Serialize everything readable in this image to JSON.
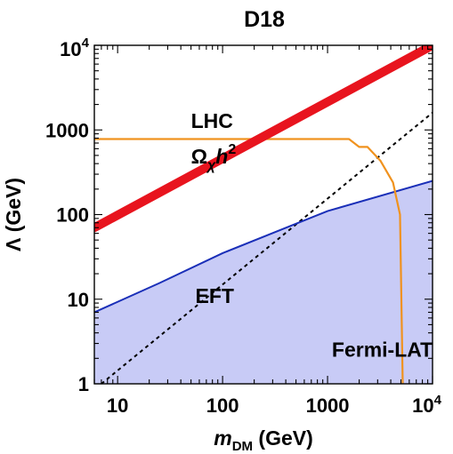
{
  "chart_data": {
    "type": "line",
    "title": "D18",
    "xlabel": {
      "main": "m",
      "sub": "DM",
      "unit": "(GeV)"
    },
    "ylabel": "Λ (GeV)",
    "x_scale": "log",
    "y_scale": "log",
    "xlim": [
      6,
      10000
    ],
    "ylim": [
      1,
      10000
    ],
    "x_ticks": [
      {
        "value": 10,
        "label": "10"
      },
      {
        "value": 100,
        "label": "100"
      },
      {
        "value": 1000,
        "label": "1000"
      },
      {
        "value": 10000,
        "label": "10",
        "sup": "4"
      }
    ],
    "y_ticks": [
      {
        "value": 1,
        "label": "1"
      },
      {
        "value": 10,
        "label": "10"
      },
      {
        "value": 100,
        "label": "100"
      },
      {
        "value": 1000,
        "label": "1000"
      },
      {
        "value": 10000,
        "label": "10",
        "sup": "4"
      }
    ],
    "grid": false,
    "series": [
      {
        "key": "relic",
        "color": "#e8141e",
        "style": "thick",
        "x": [
          6,
          10000
        ],
        "y": [
          70,
          10000
        ]
      },
      {
        "key": "lhc",
        "color": "#f0921e",
        "style": "solid",
        "x": [
          6,
          1600,
          2000,
          2400,
          3200,
          4200,
          4900,
          5200,
          5200
        ],
        "y": [
          780,
          780,
          630,
          630,
          430,
          240,
          100,
          1,
          1
        ]
      },
      {
        "key": "eft",
        "color": "#1a2fb8",
        "style": "solid",
        "fill": "#c8cbf6",
        "x": [
          6,
          25,
          100,
          1000,
          10000
        ],
        "y": [
          7,
          15.5,
          35,
          110,
          250
        ]
      },
      {
        "key": "diag",
        "color": "#000000",
        "style": "dashed",
        "x": [
          7,
          10000
        ],
        "y": [
          1,
          1600
        ]
      }
    ],
    "annotations": [
      {
        "key": "lhc-label",
        "text": "LHC",
        "x": 50,
        "y": 1050
      },
      {
        "key": "omega-label",
        "main": "Ω",
        "sub": "χ",
        "tail": "h",
        "sup": "2",
        "x": 50,
        "y": 400
      },
      {
        "key": "eft-label",
        "text": "EFT",
        "x": 55,
        "y": 9
      },
      {
        "key": "fermi-label",
        "text": "Fermi-LAT",
        "x": 1100,
        "y": 2.1
      }
    ]
  }
}
